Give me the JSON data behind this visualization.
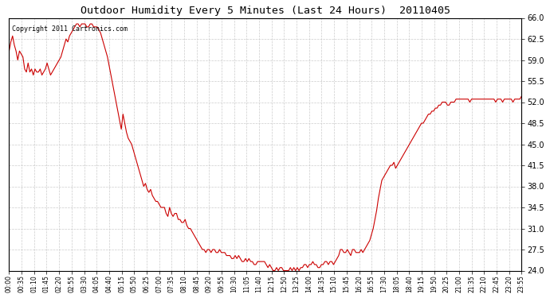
{
  "title": "Outdoor Humidity Every 5 Minutes (Last 24 Hours)  20110405",
  "copyright_text": "Copyright 2011 Cartronics.com",
  "line_color": "#cc0000",
  "bg_color": "#ffffff",
  "grid_color": "#cccccc",
  "ylim": [
    24.0,
    66.0
  ],
  "yticks": [
    24.0,
    27.5,
    31.0,
    34.5,
    38.0,
    41.5,
    45.0,
    48.5,
    52.0,
    55.5,
    59.0,
    62.5,
    66.0
  ],
  "xtick_labels": [
    "00:00",
    "00:35",
    "01:10",
    "01:45",
    "02:20",
    "02:55",
    "03:30",
    "04:05",
    "04:40",
    "05:15",
    "05:50",
    "06:25",
    "07:00",
    "07:35",
    "08:10",
    "08:45",
    "09:20",
    "09:55",
    "10:30",
    "11:05",
    "11:40",
    "12:15",
    "12:50",
    "13:25",
    "14:00",
    "14:35",
    "15:10",
    "15:45",
    "16:20",
    "16:55",
    "17:30",
    "18:05",
    "18:40",
    "19:15",
    "19:50",
    "20:25",
    "21:00",
    "21:35",
    "22:10",
    "22:45",
    "23:20",
    "23:55"
  ],
  "humidity_values": [
    60.5,
    62.0,
    63.0,
    61.5,
    60.5,
    59.0,
    60.5,
    60.0,
    59.5,
    57.5,
    57.0,
    58.5,
    57.0,
    57.5,
    56.5,
    57.5,
    57.0,
    57.0,
    57.5,
    56.5,
    57.0,
    57.5,
    58.5,
    57.5,
    56.5,
    57.0,
    57.5,
    58.0,
    58.5,
    59.0,
    59.5,
    60.5,
    61.5,
    62.5,
    62.0,
    63.0,
    63.5,
    64.0,
    64.5,
    65.0,
    65.0,
    64.5,
    65.0,
    65.0,
    65.0,
    64.5,
    64.5,
    65.0,
    65.0,
    64.5,
    64.5,
    64.5,
    64.0,
    63.5,
    62.5,
    61.5,
    60.5,
    59.5,
    58.0,
    56.5,
    55.0,
    53.5,
    52.0,
    50.5,
    49.0,
    47.5,
    50.0,
    48.5,
    47.0,
    46.0,
    45.5,
    45.0,
    44.0,
    43.0,
    42.0,
    41.0,
    40.0,
    39.0,
    38.0,
    38.5,
    37.5,
    37.0,
    37.5,
    36.5,
    36.0,
    35.5,
    35.5,
    35.0,
    34.5,
    34.5,
    34.5,
    33.5,
    33.0,
    34.5,
    33.5,
    33.0,
    33.5,
    33.5,
    32.5,
    32.5,
    32.0,
    32.0,
    32.5,
    31.5,
    31.0,
    31.0,
    30.5,
    30.0,
    29.5,
    29.0,
    28.5,
    28.0,
    27.5,
    27.5,
    27.0,
    27.5,
    27.5,
    27.0,
    27.5,
    27.5,
    27.0,
    27.0,
    27.5,
    27.0,
    27.0,
    27.0,
    26.5,
    26.5,
    26.5,
    26.0,
    26.0,
    26.5,
    26.0,
    26.5,
    26.0,
    25.5,
    25.5,
    26.0,
    25.5,
    26.0,
    25.5,
    25.5,
    25.0,
    25.0,
    25.5,
    25.5,
    25.5,
    25.5,
    25.5,
    25.0,
    24.5,
    25.0,
    24.5,
    24.0,
    24.0,
    24.5,
    24.0,
    24.5,
    24.5,
    24.0,
    24.0,
    24.0,
    24.0,
    24.5,
    24.0,
    24.5,
    24.0,
    24.5,
    24.0,
    24.5,
    24.5,
    25.0,
    25.0,
    24.5,
    25.0,
    25.0,
    25.5,
    25.0,
    25.0,
    24.5,
    24.5,
    25.0,
    25.0,
    25.5,
    25.5,
    25.0,
    25.5,
    25.5,
    25.0,
    25.5,
    26.0,
    26.5,
    27.5,
    27.5,
    27.0,
    27.0,
    27.5,
    27.0,
    26.5,
    27.5,
    27.5,
    27.0,
    27.0,
    27.0,
    27.5,
    27.0,
    27.5,
    28.0,
    28.5,
    29.0,
    30.0,
    31.0,
    32.5,
    34.0,
    36.0,
    37.5,
    39.0,
    39.5,
    40.0,
    40.5,
    41.0,
    41.5,
    41.5,
    42.0,
    41.0,
    41.5,
    42.0,
    42.5,
    43.0,
    43.5,
    44.0,
    44.5,
    45.0,
    45.5,
    46.0,
    46.5,
    47.0,
    47.5,
    48.0,
    48.5,
    48.5,
    49.0,
    49.5,
    50.0,
    50.0,
    50.5,
    50.5,
    51.0,
    51.0,
    51.5,
    51.5,
    52.0,
    52.0,
    52.0,
    51.5,
    51.5,
    52.0,
    52.0,
    52.0,
    52.5,
    52.5,
    52.5,
    52.5,
    52.5,
    52.5,
    52.5,
    52.5,
    52.0,
    52.5,
    52.5,
    52.5,
    52.5,
    52.5,
    52.5,
    52.5,
    52.5,
    52.5,
    52.5,
    52.5,
    52.5,
    52.5,
    52.5,
    52.0,
    52.5,
    52.5,
    52.5,
    52.0,
    52.5,
    52.5,
    52.5,
    52.5,
    52.5,
    52.0,
    52.5,
    52.5,
    52.5,
    52.5,
    53.0
  ]
}
